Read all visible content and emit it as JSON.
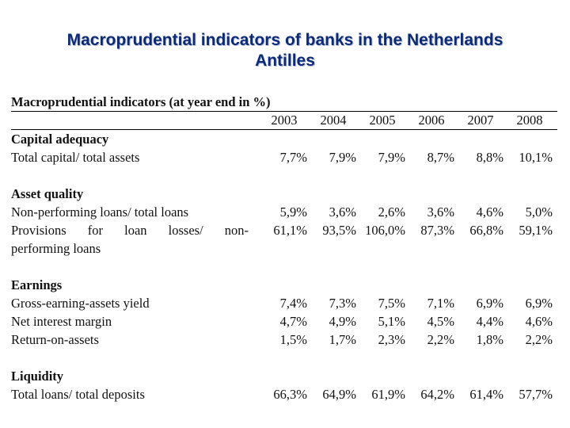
{
  "slide": {
    "title_line1": "Macroprudential indicators of banks in the Netherlands",
    "title_line2": "Antilles"
  },
  "table": {
    "heading": "Macroprudential indicators (at year end in %)",
    "years": [
      "2003",
      "2004",
      "2005",
      "2006",
      "2007",
      "2008"
    ],
    "capital": {
      "title": "Capital adequacy",
      "rows": [
        {
          "label": "Total capital/ total assets",
          "values": [
            "7,7%",
            "7,9%",
            "7,9%",
            "8,7%",
            "8,8%",
            "10,1%"
          ]
        }
      ]
    },
    "asset": {
      "title": "Asset quality",
      "npl": {
        "label": "Non-performing loans/ total loans",
        "values": [
          "5,9%",
          "3,6%",
          "2,6%",
          "3,6%",
          "4,6%",
          "5,0%"
        ]
      },
      "prov": {
        "label_words": [
          "Provisions",
          "for",
          "loan",
          "losses/",
          "non-"
        ],
        "label_line2": "performing loans",
        "values": [
          "61,1%",
          "93,5%",
          "106,0%",
          "87,3%",
          "66,8%",
          "59,1%"
        ]
      }
    },
    "earnings": {
      "title": "Earnings",
      "rows": [
        {
          "label": "Gross-earning-assets yield",
          "values": [
            "7,4%",
            "7,3%",
            "7,5%",
            "7,1%",
            "6,9%",
            "6,9%"
          ]
        },
        {
          "label": "Net interest margin",
          "values": [
            "4,7%",
            "4,9%",
            "5,1%",
            "4,5%",
            "4,4%",
            "4,6%"
          ]
        },
        {
          "label": "Return-on-assets",
          "values": [
            "1,5%",
            "1,7%",
            "2,3%",
            "2,2%",
            "1,8%",
            "2,2%"
          ]
        }
      ]
    },
    "liquidity": {
      "title": "Liquidity",
      "rows": [
        {
          "label": "Total loans/ total deposits",
          "values": [
            "66,3%",
            "64,9%",
            "61,9%",
            "64,2%",
            "61,4%",
            "57,7%"
          ]
        }
      ]
    }
  }
}
